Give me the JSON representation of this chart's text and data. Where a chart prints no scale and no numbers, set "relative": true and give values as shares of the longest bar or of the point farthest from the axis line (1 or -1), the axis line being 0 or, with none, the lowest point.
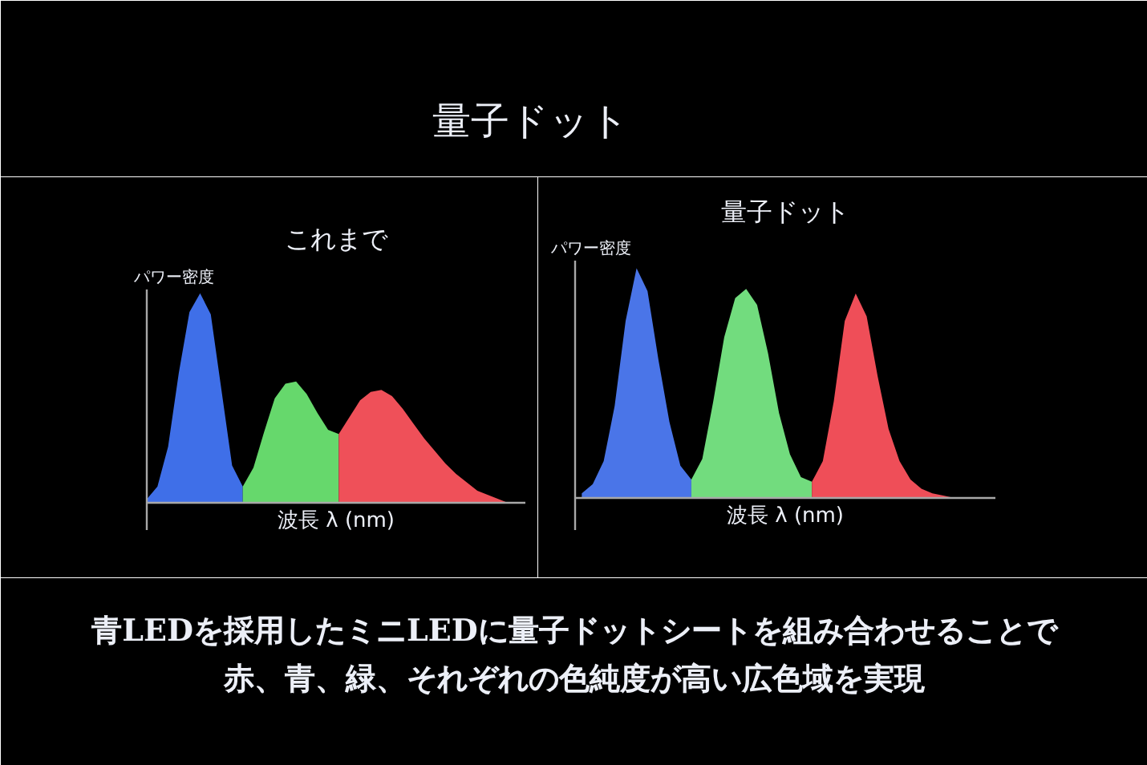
{
  "chart_data": [
    {
      "type": "other",
      "title": "量子ドット"
    },
    {
      "type": "area",
      "title": "これまで",
      "xlabel": "波長 λ (nm)",
      "ylabel": "パワー密度",
      "relative": true,
      "categories": [
        null,
        null,
        null,
        null,
        null,
        null,
        null,
        null,
        null,
        null,
        null,
        null,
        null,
        null,
        null,
        null,
        null,
        null,
        null,
        null,
        null,
        null,
        null,
        null,
        null,
        null,
        null,
        null,
        null,
        null,
        null,
        null,
        null,
        null,
        null
      ],
      "series": [
        {
          "color": "#3f6fe8",
          "values": [
            0.02,
            0.08,
            0.27,
            0.62,
            0.91,
            1.0,
            0.9,
            0.54,
            0.18,
            0.08,
            null,
            null,
            null,
            null,
            null,
            null,
            null,
            null,
            null,
            null,
            null,
            null,
            null,
            null,
            null,
            null,
            null,
            null,
            null,
            null,
            null,
            null,
            null,
            null,
            null
          ]
        },
        {
          "color": "#66d86c",
          "values": [
            null,
            null,
            null,
            null,
            null,
            null,
            null,
            null,
            null,
            0.08,
            0.17,
            0.34,
            0.5,
            0.57,
            0.58,
            0.52,
            0.43,
            0.35,
            0.33,
            null,
            null,
            null,
            null,
            null,
            null,
            null,
            null,
            null,
            null,
            null,
            null,
            null,
            null,
            null,
            null
          ]
        },
        {
          "color": "#ef5059",
          "values": [
            null,
            null,
            null,
            null,
            null,
            null,
            null,
            null,
            null,
            null,
            null,
            null,
            null,
            null,
            null,
            null,
            null,
            null,
            0.33,
            0.41,
            0.49,
            0.53,
            0.54,
            0.51,
            0.45,
            0.38,
            0.31,
            0.25,
            0.19,
            0.14,
            0.1,
            0.06,
            0.04,
            0.02,
            0.0
          ]
        }
      ]
    },
    {
      "type": "area",
      "title": "量子ドット",
      "xlabel": "波長 λ (nm)",
      "ylabel": "パワー密度",
      "relative": true,
      "categories": [
        null,
        null,
        null,
        null,
        null,
        null,
        null,
        null,
        null,
        null,
        null,
        null,
        null,
        null,
        null,
        null,
        null,
        null,
        null,
        null,
        null,
        null,
        null,
        null,
        null,
        null,
        null,
        null,
        null,
        null,
        null,
        null,
        null,
        null,
        null
      ],
      "series": [
        {
          "color": "#4a75e8",
          "values": [
            0.02,
            0.06,
            0.16,
            0.4,
            0.77,
            1.0,
            0.9,
            0.6,
            0.33,
            0.14,
            0.08,
            null,
            null,
            null,
            null,
            null,
            null,
            null,
            null,
            null,
            null,
            null,
            null,
            null,
            null,
            null,
            null,
            null,
            null,
            null,
            null,
            null,
            null,
            null,
            null
          ]
        },
        {
          "color": "#72dc7e",
          "values": [
            null,
            null,
            null,
            null,
            null,
            null,
            null,
            null,
            null,
            null,
            0.08,
            0.17,
            0.42,
            0.7,
            0.87,
            0.91,
            0.84,
            0.63,
            0.37,
            0.19,
            0.09,
            0.07,
            null,
            null,
            null,
            null,
            null,
            null,
            null,
            null,
            null,
            null,
            null,
            null,
            null
          ]
        },
        {
          "color": "#ef4e58",
          "values": [
            null,
            null,
            null,
            null,
            null,
            null,
            null,
            null,
            null,
            null,
            null,
            null,
            null,
            null,
            null,
            null,
            null,
            null,
            null,
            null,
            null,
            0.07,
            0.16,
            0.42,
            0.77,
            0.89,
            0.79,
            0.53,
            0.3,
            0.16,
            0.08,
            0.04,
            0.02,
            0.01,
            0.0
          ]
        }
      ]
    },
    {
      "type": "other",
      "annotations": [
        "青LEDを採用したミニLEDに量子ドットシートを組み合わせることで",
        "赤、青、緑、それぞれの色純度が高い広色域を実現"
      ]
    }
  ]
}
